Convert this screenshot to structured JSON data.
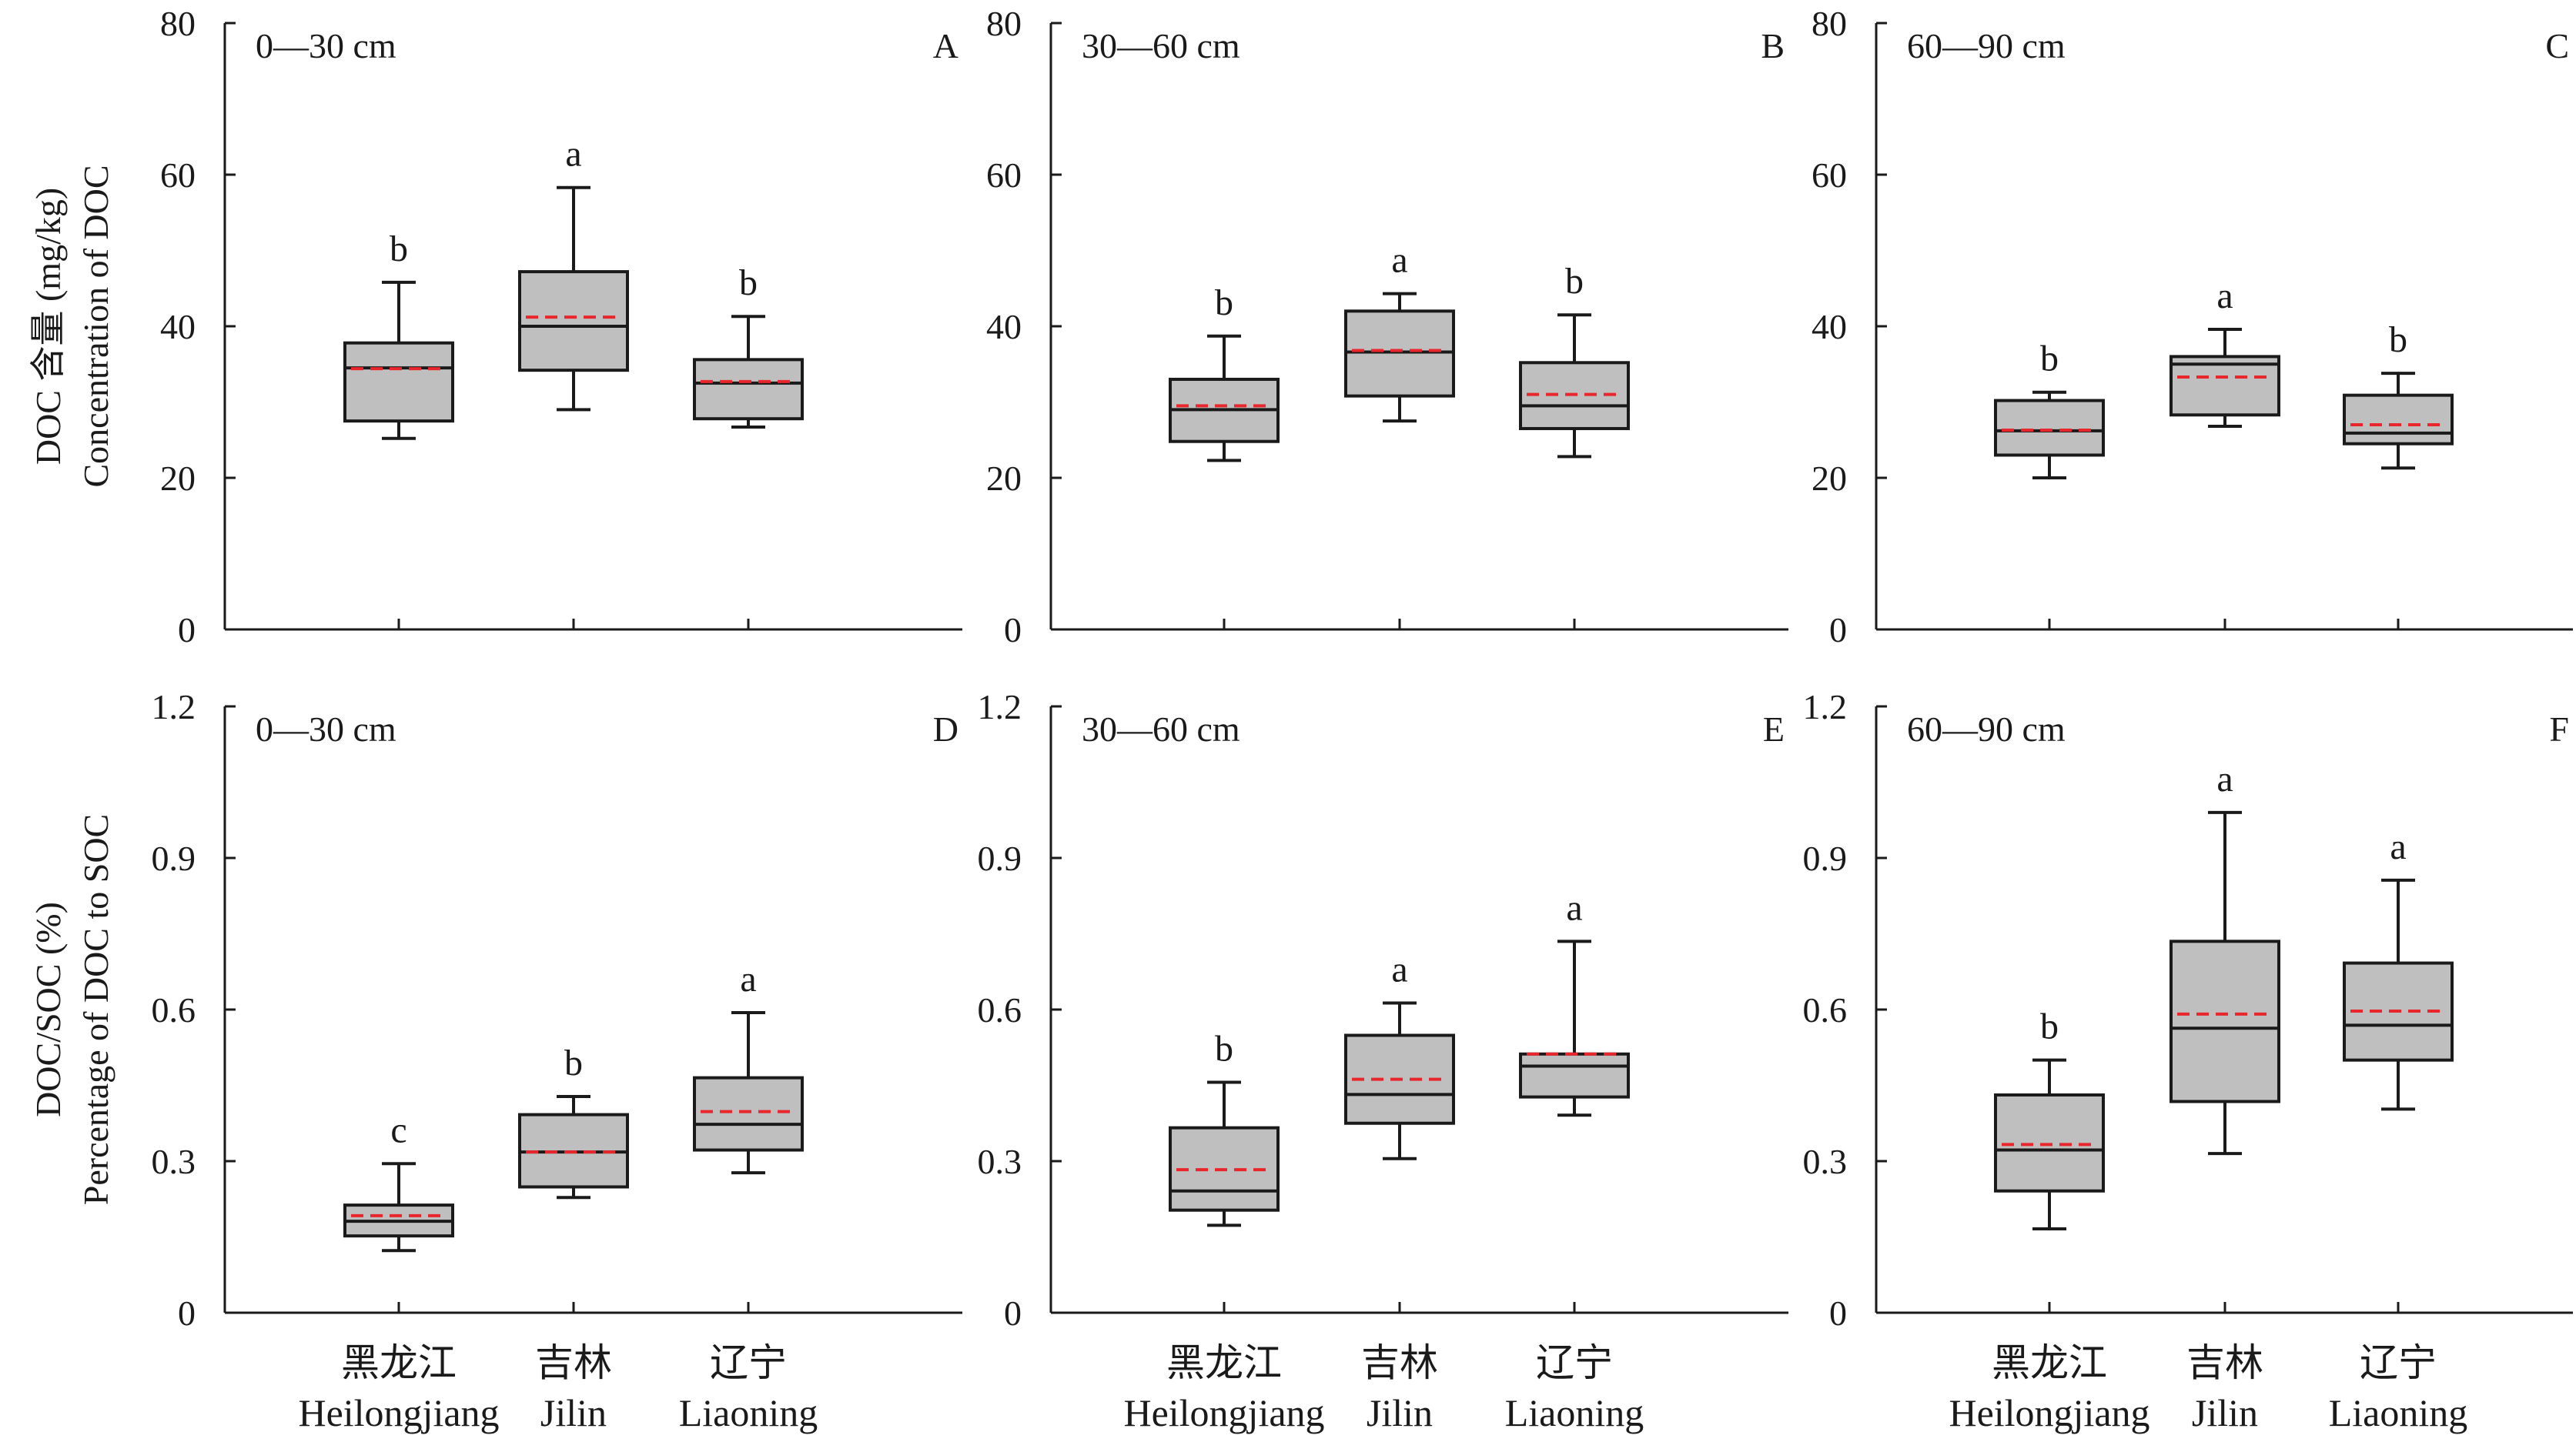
{
  "figure": {
    "categories": [
      {
        "cn": "黑龙江",
        "en": "Heilongjiang"
      },
      {
        "cn": "吉林",
        "en": "Jilin"
      },
      {
        "cn": "辽宁",
        "en": "Liaoning"
      }
    ],
    "rows": [
      {
        "ylabel_lines": [
          "DOC 含量 (mg/kg)",
          "Concentration of DOC"
        ]
      },
      {
        "ylabel_lines": [
          "DOC/SOC (%)",
          "Percentage of DOC to SOC"
        ]
      }
    ]
  },
  "chart_data": [
    {
      "type": "box",
      "panel": "A",
      "depth": "0—30 cm",
      "ylim": [
        0,
        80
      ],
      "yticks": [
        0,
        20,
        40,
        60,
        80
      ],
      "ytick_labels": [
        "0",
        "20",
        "40",
        "60",
        "80"
      ],
      "boxes": [
        {
          "category": "Heilongjiang",
          "min": 25.2,
          "q1": 27.5,
          "median": 34.5,
          "mean": 34.4,
          "q3": 37.8,
          "max": 45.8,
          "sig": "b"
        },
        {
          "category": "Jilin",
          "min": 29.0,
          "q1": 34.2,
          "median": 40.0,
          "mean": 41.2,
          "q3": 47.2,
          "max": 58.3,
          "sig": "a"
        },
        {
          "category": "Liaoning",
          "min": 26.7,
          "q1": 27.8,
          "median": 32.5,
          "mean": 32.7,
          "q3": 35.6,
          "max": 41.3,
          "sig": "b"
        }
      ]
    },
    {
      "type": "box",
      "panel": "B",
      "depth": "30—60 cm",
      "ylim": [
        0,
        80
      ],
      "yticks": [
        0,
        20,
        40,
        60,
        80
      ],
      "ytick_labels": [
        "0",
        "20",
        "40",
        "60",
        "80"
      ],
      "boxes": [
        {
          "category": "Heilongjiang",
          "min": 22.3,
          "q1": 24.8,
          "median": 29.0,
          "mean": 29.5,
          "q3": 33.0,
          "max": 38.7,
          "sig": "b"
        },
        {
          "category": "Jilin",
          "min": 27.5,
          "q1": 30.8,
          "median": 36.6,
          "mean": 36.8,
          "q3": 42.0,
          "max": 44.3,
          "sig": "a"
        },
        {
          "category": "Liaoning",
          "min": 22.8,
          "q1": 26.5,
          "median": 29.5,
          "mean": 31.0,
          "q3": 35.2,
          "max": 41.5,
          "sig": "b"
        }
      ]
    },
    {
      "type": "box",
      "panel": "C",
      "depth": "60—90 cm",
      "ylim": [
        0,
        80
      ],
      "yticks": [
        0,
        20,
        40,
        60,
        80
      ],
      "ytick_labels": [
        "0",
        "20",
        "40",
        "60",
        "80"
      ],
      "boxes": [
        {
          "category": "Heilongjiang",
          "min": 20.0,
          "q1": 23.0,
          "median": 26.2,
          "mean": 26.3,
          "q3": 30.2,
          "max": 31.3,
          "sig": "b"
        },
        {
          "category": "Jilin",
          "min": 26.8,
          "q1": 28.3,
          "median": 35.0,
          "mean": 33.3,
          "q3": 36.0,
          "max": 39.6,
          "sig": "a"
        },
        {
          "category": "Liaoning",
          "min": 21.3,
          "q1": 24.5,
          "median": 25.9,
          "mean": 27.0,
          "q3": 30.9,
          "max": 33.8,
          "sig": "b"
        }
      ]
    },
    {
      "type": "box",
      "panel": "D",
      "depth": "0—30 cm",
      "ylim": [
        0,
        1.2
      ],
      "yticks": [
        0,
        0.3,
        0.6,
        0.9,
        1.2
      ],
      "ytick_labels": [
        "0",
        "0.3",
        "0.6",
        "0.9",
        "1.2"
      ],
      "boxes": [
        {
          "category": "Heilongjiang",
          "min": 0.123,
          "q1": 0.152,
          "median": 0.181,
          "mean": 0.192,
          "q3": 0.213,
          "max": 0.295,
          "sig": "c"
        },
        {
          "category": "Jilin",
          "min": 0.228,
          "q1": 0.249,
          "median": 0.318,
          "mean": 0.318,
          "q3": 0.392,
          "max": 0.428,
          "sig": "b"
        },
        {
          "category": "Liaoning",
          "min": 0.277,
          "q1": 0.322,
          "median": 0.373,
          "mean": 0.398,
          "q3": 0.465,
          "max": 0.594,
          "sig": "a"
        }
      ]
    },
    {
      "type": "box",
      "panel": "E",
      "depth": "30—60 cm",
      "ylim": [
        0,
        1.2
      ],
      "yticks": [
        0,
        0.3,
        0.6,
        0.9,
        1.2
      ],
      "ytick_labels": [
        "0",
        "0.3",
        "0.6",
        "0.9",
        "1.2"
      ],
      "boxes": [
        {
          "category": "Heilongjiang",
          "min": 0.173,
          "q1": 0.203,
          "median": 0.241,
          "mean": 0.283,
          "q3": 0.366,
          "max": 0.456,
          "sig": "b"
        },
        {
          "category": "Jilin",
          "min": 0.305,
          "q1": 0.375,
          "median": 0.432,
          "mean": 0.462,
          "q3": 0.549,
          "max": 0.613,
          "sig": "a"
        },
        {
          "category": "Liaoning",
          "min": 0.391,
          "q1": 0.427,
          "median": 0.488,
          "mean": 0.512,
          "q3": 0.512,
          "max": 0.735,
          "sig": "a"
        }
      ]
    },
    {
      "type": "box",
      "panel": "F",
      "depth": "60—90 cm",
      "ylim": [
        0,
        1.2
      ],
      "yticks": [
        0,
        0.3,
        0.6,
        0.9,
        1.2
      ],
      "ytick_labels": [
        "0",
        "0.3",
        "0.6",
        "0.9",
        "1.2"
      ],
      "boxes": [
        {
          "category": "Heilongjiang",
          "min": 0.166,
          "q1": 0.241,
          "median": 0.322,
          "mean": 0.333,
          "q3": 0.431,
          "max": 0.5,
          "sig": "b"
        },
        {
          "category": "Jilin",
          "min": 0.315,
          "q1": 0.418,
          "median": 0.563,
          "mean": 0.591,
          "q3": 0.735,
          "max": 0.99,
          "sig": "a"
        },
        {
          "category": "Liaoning",
          "min": 0.403,
          "q1": 0.5,
          "median": 0.569,
          "mean": 0.597,
          "q3": 0.692,
          "max": 0.856,
          "sig": "a"
        }
      ]
    }
  ],
  "colors": {
    "box_fill": "#bfbfbf",
    "box_stroke": "#1a1a1a",
    "mean_line": "#e8262b",
    "axis": "#1a1a1a"
  }
}
